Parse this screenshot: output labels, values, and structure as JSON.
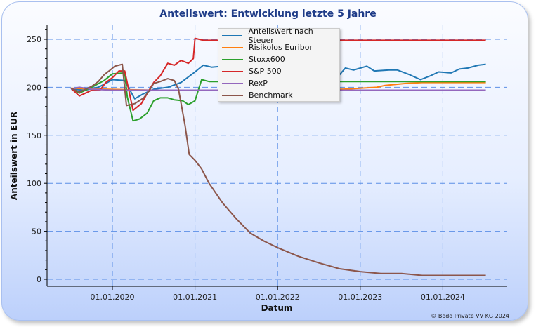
{
  "chart_data": {
    "type": "line",
    "title": "Anteilswert: Entwicklung letzte 5 Jahre",
    "xlabel": "Datum",
    "ylabel": "Anteilswert in EUR",
    "xlim": [
      2019.12,
      2024.85
    ],
    "ylim": [
      -8,
      263
    ],
    "yticks": [
      0,
      50,
      100,
      150,
      200,
      250
    ],
    "xticks": [
      {
        "v": 2020,
        "label": "01.01.2020"
      },
      {
        "v": 2021,
        "label": "01.01.2021"
      },
      {
        "v": 2022,
        "label": "01.01.2022"
      },
      {
        "v": 2023,
        "label": "01.01.2023"
      },
      {
        "v": 2024,
        "label": "01.01.2024"
      }
    ],
    "grid": true,
    "legend_position": "top-center",
    "series": [
      {
        "name": "Anteilswert nach Steuer",
        "color": "#1f77b4",
        "points": [
          [
            2019.5,
            198
          ],
          [
            2019.67,
            197
          ],
          [
            2019.83,
            200
          ],
          [
            2019.92,
            204
          ],
          [
            2020.0,
            208
          ],
          [
            2020.15,
            207
          ],
          [
            2020.27,
            188
          ],
          [
            2020.37,
            193
          ],
          [
            2020.5,
            198
          ],
          [
            2020.67,
            200
          ],
          [
            2020.83,
            205
          ],
          [
            2021.0,
            216
          ],
          [
            2021.1,
            223
          ],
          [
            2021.2,
            221
          ],
          [
            2021.35,
            222
          ],
          [
            2021.5,
            224
          ],
          [
            2021.7,
            222
          ],
          [
            2021.9,
            225
          ],
          [
            2022.1,
            221
          ],
          [
            2022.3,
            223
          ],
          [
            2022.5,
            219
          ],
          [
            2022.65,
            221
          ],
          [
            2022.72,
            210
          ],
          [
            2022.82,
            220
          ],
          [
            2022.92,
            218
          ],
          [
            2023.08,
            222
          ],
          [
            2023.17,
            217
          ],
          [
            2023.35,
            218
          ],
          [
            2023.45,
            218
          ],
          [
            2023.6,
            213
          ],
          [
            2023.73,
            208
          ],
          [
            2023.85,
            212
          ],
          [
            2023.95,
            216
          ],
          [
            2024.1,
            215
          ],
          [
            2024.2,
            219
          ],
          [
            2024.3,
            220
          ],
          [
            2024.43,
            223
          ],
          [
            2024.52,
            224
          ]
        ]
      },
      {
        "name": "Risikolos Euribor",
        "color": "#ff7f0e",
        "points": [
          [
            2019.5,
            199
          ],
          [
            2019.9,
            198
          ],
          [
            2020.5,
            197
          ],
          [
            2021.5,
            197
          ],
          [
            2022.5,
            197
          ],
          [
            2022.8,
            198
          ],
          [
            2023.0,
            199
          ],
          [
            2023.2,
            200
          ],
          [
            2023.3,
            202
          ],
          [
            2023.55,
            204
          ],
          [
            2023.75,
            205
          ],
          [
            2024.52,
            205
          ]
        ]
      },
      {
        "name": "Stoxx600",
        "color": "#2ca02c",
        "points": [
          [
            2019.5,
            199
          ],
          [
            2019.6,
            194
          ],
          [
            2019.75,
            200
          ],
          [
            2019.9,
            207
          ],
          [
            2020.0,
            214
          ],
          [
            2020.15,
            215
          ],
          [
            2020.18,
            190
          ],
          [
            2020.25,
            165
          ],
          [
            2020.33,
            167
          ],
          [
            2020.42,
            173
          ],
          [
            2020.5,
            186
          ],
          [
            2020.58,
            189
          ],
          [
            2020.67,
            189
          ],
          [
            2020.75,
            187
          ],
          [
            2020.85,
            186
          ],
          [
            2020.92,
            182
          ],
          [
            2021.0,
            186
          ],
          [
            2021.08,
            208
          ],
          [
            2021.17,
            206
          ],
          [
            2024.52,
            206
          ]
        ]
      },
      {
        "name": "S&P 500",
        "color": "#d62728",
        "points": [
          [
            2019.5,
            199
          ],
          [
            2019.6,
            191
          ],
          [
            2019.75,
            197
          ],
          [
            2019.85,
            197
          ],
          [
            2019.92,
            205
          ],
          [
            2020.0,
            210
          ],
          [
            2020.08,
            217
          ],
          [
            2020.15,
            217
          ],
          [
            2020.25,
            176
          ],
          [
            2020.35,
            183
          ],
          [
            2020.43,
            195
          ],
          [
            2020.5,
            205
          ],
          [
            2020.58,
            212
          ],
          [
            2020.67,
            225
          ],
          [
            2020.75,
            223
          ],
          [
            2020.83,
            228
          ],
          [
            2020.92,
            225
          ],
          [
            2020.98,
            230
          ],
          [
            2021.0,
            251
          ],
          [
            2021.1,
            249
          ],
          [
            2024.52,
            249
          ]
        ]
      },
      {
        "name": "RexP",
        "color": "#9467bd",
        "points": [
          [
            2019.5,
            198
          ],
          [
            2019.6,
            200
          ],
          [
            2019.75,
            198
          ],
          [
            2020.0,
            197
          ],
          [
            2020.5,
            197
          ],
          [
            2024.52,
            197
          ]
        ]
      },
      {
        "name": "Benchmark",
        "color": "#8c564b",
        "points": [
          [
            2019.5,
            199
          ],
          [
            2019.6,
            195
          ],
          [
            2019.75,
            201
          ],
          [
            2019.83,
            206
          ],
          [
            2019.9,
            213
          ],
          [
            2019.96,
            217
          ],
          [
            2020.03,
            222
          ],
          [
            2020.12,
            224
          ],
          [
            2020.17,
            181
          ],
          [
            2020.27,
            183
          ],
          [
            2020.38,
            189
          ],
          [
            2020.45,
            197
          ],
          [
            2020.5,
            204
          ],
          [
            2020.58,
            206
          ],
          [
            2020.67,
            209
          ],
          [
            2020.75,
            207
          ],
          [
            2020.8,
            198
          ],
          [
            2020.88,
            160
          ],
          [
            2020.93,
            130
          ],
          [
            2021.0,
            124
          ],
          [
            2021.08,
            115
          ],
          [
            2021.17,
            100
          ],
          [
            2021.33,
            80
          ],
          [
            2021.5,
            63
          ],
          [
            2021.67,
            48
          ],
          [
            2021.83,
            40
          ],
          [
            2022.0,
            33
          ],
          [
            2022.25,
            24
          ],
          [
            2022.5,
            17
          ],
          [
            2022.75,
            11
          ],
          [
            2023.0,
            8
          ],
          [
            2023.25,
            6
          ],
          [
            2023.5,
            6
          ],
          [
            2023.75,
            4
          ],
          [
            2024.52,
            4
          ]
        ]
      }
    ]
  },
  "footer": {
    "copyright": "© Bodo Private VV KG 2024"
  }
}
